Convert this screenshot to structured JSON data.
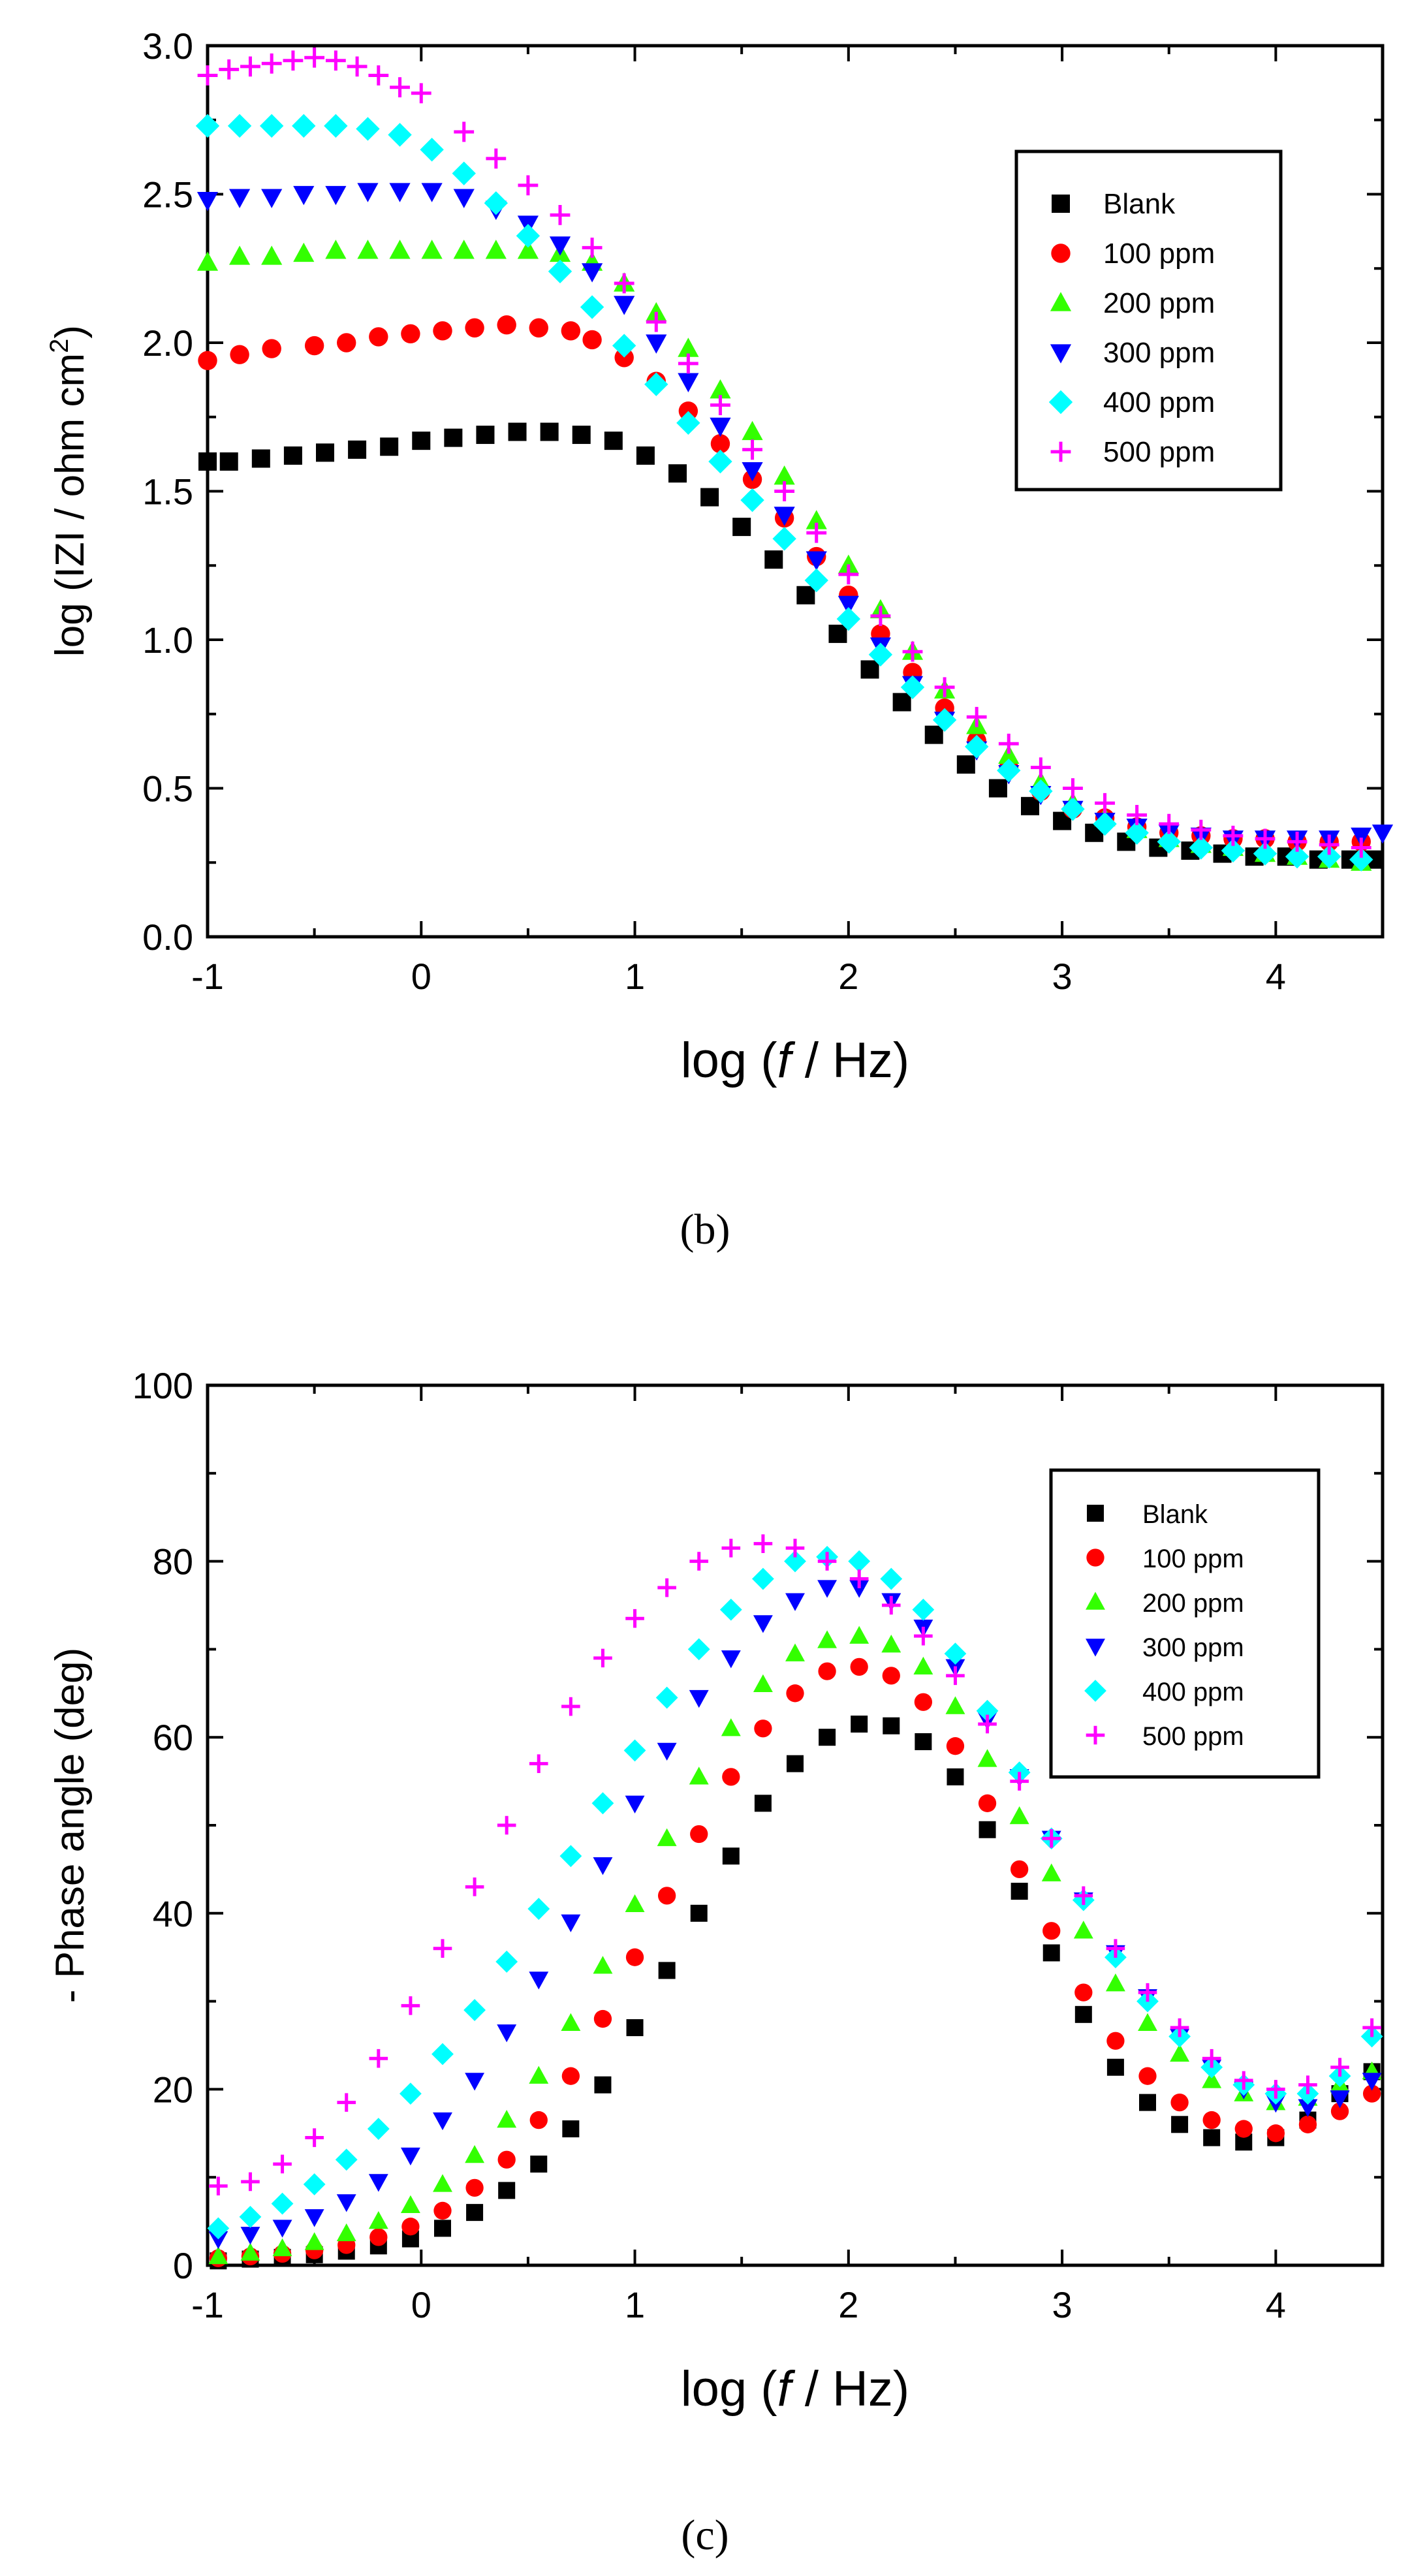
{
  "figure_labels": {
    "b": "(b)",
    "c": "(c)"
  },
  "series_styles": [
    {
      "name": "Blank",
      "color": "#000000",
      "marker": "square"
    },
    {
      "name": "100 ppm",
      "color": "#ff0000",
      "marker": "circle"
    },
    {
      "name": "200 ppm",
      "color": "#33ff00",
      "marker": "triangle-up"
    },
    {
      "name": "300 ppm",
      "color": "#0000ff",
      "marker": "triangle-down"
    },
    {
      "name": "400 ppm",
      "color": "#00ffff",
      "marker": "diamond"
    },
    {
      "name": "500 ppm",
      "color": "#ff00ff",
      "marker": "plus"
    }
  ],
  "chart_data": [
    {
      "id": "b",
      "type": "scatter",
      "title": "",
      "xlabel_parts": {
        "pre": "log (",
        "italic": "f",
        "post": " / Hz)"
      },
      "ylabel_parts": {
        "main": "log (IZI / ohm cm",
        "sup": "2",
        "close": ")"
      },
      "xlim": [
        -1,
        4.5
      ],
      "ylim": [
        0,
        3.0
      ],
      "xticks": [
        "-1",
        "0",
        "1",
        "2",
        "3",
        "4"
      ],
      "xtick_values": [
        -1,
        0,
        1,
        2,
        3,
        4
      ],
      "yticks": [
        "0.0",
        "0.5",
        "1.0",
        "1.5",
        "2.0",
        "2.5",
        "3.0"
      ],
      "ytick_values": [
        0,
        0.5,
        1.0,
        1.5,
        2.0,
        2.5,
        3.0
      ],
      "legend_position": "top-right",
      "series": [
        {
          "name": "Blank",
          "x": [
            -1.0,
            -0.9,
            -0.75,
            -0.6,
            -0.45,
            -0.3,
            -0.15,
            0.0,
            0.15,
            0.3,
            0.45,
            0.6,
            0.75,
            0.9,
            1.05,
            1.2,
            1.35,
            1.5,
            1.65,
            1.8,
            1.95,
            2.1,
            2.25,
            2.4,
            2.55,
            2.7,
            2.85,
            3.0,
            3.15,
            3.3,
            3.45,
            3.6,
            3.75,
            3.9,
            4.05,
            4.2,
            4.35,
            4.45
          ],
          "y": [
            1.6,
            1.6,
            1.61,
            1.62,
            1.63,
            1.64,
            1.65,
            1.67,
            1.68,
            1.69,
            1.7,
            1.7,
            1.69,
            1.67,
            1.62,
            1.56,
            1.48,
            1.38,
            1.27,
            1.15,
            1.02,
            0.9,
            0.79,
            0.68,
            0.58,
            0.5,
            0.44,
            0.39,
            0.35,
            0.32,
            0.3,
            0.29,
            0.28,
            0.27,
            0.27,
            0.26,
            0.26,
            0.26
          ]
        },
        {
          "name": "100 ppm",
          "x": [
            -1.0,
            -0.85,
            -0.7,
            -0.5,
            -0.35,
            -0.2,
            -0.05,
            0.1,
            0.25,
            0.4,
            0.55,
            0.7,
            0.8,
            0.95,
            1.1,
            1.25,
            1.4,
            1.55,
            1.7,
            1.85,
            2.0,
            2.15,
            2.3,
            2.45,
            2.6,
            2.75,
            2.9,
            3.05,
            3.2,
            3.35,
            3.5,
            3.65,
            3.8,
            3.95,
            4.1,
            4.25,
            4.4
          ],
          "y": [
            1.94,
            1.96,
            1.98,
            1.99,
            2.0,
            2.02,
            2.03,
            2.04,
            2.05,
            2.06,
            2.05,
            2.04,
            2.01,
            1.95,
            1.87,
            1.77,
            1.66,
            1.54,
            1.41,
            1.28,
            1.15,
            1.02,
            0.89,
            0.77,
            0.66,
            0.57,
            0.49,
            0.43,
            0.4,
            0.37,
            0.35,
            0.34,
            0.33,
            0.33,
            0.32,
            0.32,
            0.32
          ]
        },
        {
          "name": "200 ppm",
          "x": [
            -1.0,
            -0.85,
            -0.7,
            -0.55,
            -0.4,
            -0.25,
            -0.1,
            0.05,
            0.2,
            0.35,
            0.5,
            0.65,
            0.8,
            0.95,
            1.1,
            1.25,
            1.4,
            1.55,
            1.7,
            1.85,
            2.0,
            2.15,
            2.3,
            2.45,
            2.6,
            2.75,
            2.9,
            3.05,
            3.2,
            3.35,
            3.5,
            3.65,
            3.8,
            3.95,
            4.1,
            4.25,
            4.4
          ],
          "y": [
            2.27,
            2.29,
            2.29,
            2.3,
            2.31,
            2.31,
            2.31,
            2.31,
            2.31,
            2.31,
            2.31,
            2.3,
            2.27,
            2.2,
            2.1,
            1.98,
            1.84,
            1.7,
            1.55,
            1.4,
            1.25,
            1.1,
            0.96,
            0.83,
            0.71,
            0.61,
            0.52,
            0.45,
            0.4,
            0.36,
            0.33,
            0.31,
            0.3,
            0.28,
            0.27,
            0.26,
            0.25
          ]
        },
        {
          "name": "300 ppm",
          "x": [
            -1.0,
            -0.85,
            -0.7,
            -0.55,
            -0.4,
            -0.25,
            -0.1,
            0.05,
            0.2,
            0.35,
            0.5,
            0.65,
            0.8,
            0.95,
            1.1,
            1.25,
            1.4,
            1.55,
            1.7,
            1.85,
            2.0,
            2.15,
            2.3,
            2.45,
            2.6,
            2.75,
            2.9,
            3.05,
            3.2,
            3.35,
            3.5,
            3.65,
            3.8,
            3.95,
            4.1,
            4.25,
            4.4,
            4.5
          ],
          "y": [
            2.48,
            2.49,
            2.49,
            2.5,
            2.5,
            2.51,
            2.51,
            2.51,
            2.49,
            2.45,
            2.4,
            2.33,
            2.24,
            2.13,
            2.0,
            1.87,
            1.72,
            1.57,
            1.42,
            1.27,
            1.12,
            0.98,
            0.85,
            0.73,
            0.63,
            0.55,
            0.48,
            0.43,
            0.39,
            0.37,
            0.35,
            0.34,
            0.33,
            0.33,
            0.33,
            0.33,
            0.34,
            0.35
          ]
        },
        {
          "name": "400 ppm",
          "x": [
            -1.0,
            -0.85,
            -0.7,
            -0.55,
            -0.4,
            -0.25,
            -0.1,
            0.05,
            0.2,
            0.35,
            0.5,
            0.65,
            0.8,
            0.95,
            1.1,
            1.25,
            1.4,
            1.55,
            1.7,
            1.85,
            2.0,
            2.15,
            2.3,
            2.45,
            2.6,
            2.75,
            2.9,
            3.05,
            3.2,
            3.35,
            3.5,
            3.65,
            3.8,
            3.95,
            4.1,
            4.25,
            4.4
          ],
          "y": [
            2.73,
            2.73,
            2.73,
            2.73,
            2.73,
            2.72,
            2.7,
            2.65,
            2.57,
            2.47,
            2.36,
            2.24,
            2.12,
            1.99,
            1.86,
            1.73,
            1.6,
            1.47,
            1.34,
            1.2,
            1.07,
            0.95,
            0.84,
            0.73,
            0.64,
            0.56,
            0.49,
            0.43,
            0.38,
            0.35,
            0.32,
            0.3,
            0.29,
            0.28,
            0.27,
            0.27,
            0.26
          ]
        },
        {
          "name": "500 ppm",
          "x": [
            -1.0,
            -0.9,
            -0.8,
            -0.7,
            -0.6,
            -0.5,
            -0.4,
            -0.3,
            -0.2,
            -0.1,
            0.0,
            0.2,
            0.35,
            0.5,
            0.65,
            0.8,
            0.95,
            1.1,
            1.25,
            1.4,
            1.55,
            1.7,
            1.85,
            2.0,
            2.15,
            2.3,
            2.45,
            2.6,
            2.75,
            2.9,
            3.05,
            3.2,
            3.35,
            3.5,
            3.65,
            3.8,
            3.95,
            4.1,
            4.25,
            4.4
          ],
          "y": [
            2.9,
            2.92,
            2.93,
            2.94,
            2.95,
            2.96,
            2.95,
            2.93,
            2.9,
            2.86,
            2.84,
            2.71,
            2.62,
            2.53,
            2.43,
            2.32,
            2.2,
            2.07,
            1.93,
            1.79,
            1.64,
            1.5,
            1.36,
            1.22,
            1.08,
            0.96,
            0.84,
            0.74,
            0.65,
            0.57,
            0.5,
            0.45,
            0.41,
            0.38,
            0.36,
            0.34,
            0.33,
            0.32,
            0.31,
            0.3
          ]
        }
      ]
    },
    {
      "id": "c",
      "type": "scatter",
      "title": "",
      "xlabel_parts": {
        "pre": "log (",
        "italic": "f",
        "post": " / Hz)"
      },
      "ylabel": "- Phase angle (deg)",
      "xlim": [
        -1,
        4.5
      ],
      "ylim": [
        0,
        100
      ],
      "xticks": [
        "-1",
        "0",
        "1",
        "2",
        "3",
        "4"
      ],
      "xtick_values": [
        -1,
        0,
        1,
        2,
        3,
        4
      ],
      "yticks": [
        "0",
        "20",
        "40",
        "60",
        "80",
        "100"
      ],
      "ytick_values": [
        0,
        20,
        40,
        60,
        80,
        100
      ],
      "legend_position": "top-right",
      "series": [
        {
          "name": "Blank",
          "x": [
            -0.95,
            -0.8,
            -0.65,
            -0.5,
            -0.35,
            -0.2,
            -0.05,
            0.1,
            0.25,
            0.4,
            0.55,
            0.7,
            0.85,
            1.0,
            1.15,
            1.3,
            1.45,
            1.6,
            1.75,
            1.9,
            2.05,
            2.2,
            2.35,
            2.5,
            2.65,
            2.8,
            2.95,
            3.1,
            3.25,
            3.4,
            3.55,
            3.7,
            3.85,
            4.0,
            4.15,
            4.3,
            4.45
          ],
          "y": [
            0.5,
            0.7,
            0.9,
            1.2,
            1.6,
            2.2,
            3.0,
            4.2,
            6.0,
            8.5,
            11.5,
            15.5,
            20.5,
            27.0,
            33.5,
            40.0,
            46.5,
            52.5,
            57.0,
            60.0,
            61.5,
            61.3,
            59.5,
            55.5,
            49.5,
            42.5,
            35.5,
            28.5,
            22.5,
            18.5,
            16.0,
            14.5,
            14.0,
            14.5,
            16.5,
            19.5,
            22.0
          ]
        },
        {
          "name": "100 ppm",
          "x": [
            -0.95,
            -0.8,
            -0.65,
            -0.5,
            -0.35,
            -0.2,
            -0.05,
            0.1,
            0.25,
            0.4,
            0.55,
            0.7,
            0.85,
            1.0,
            1.15,
            1.3,
            1.45,
            1.6,
            1.75,
            1.9,
            2.05,
            2.2,
            2.35,
            2.5,
            2.65,
            2.8,
            2.95,
            3.1,
            3.25,
            3.4,
            3.55,
            3.7,
            3.85,
            4.0,
            4.15,
            4.3,
            4.45
          ],
          "y": [
            0.8,
            1.0,
            1.3,
            1.7,
            2.3,
            3.2,
            4.4,
            6.2,
            8.8,
            12.0,
            16.5,
            21.5,
            28.0,
            35.0,
            42.0,
            49.0,
            55.5,
            61.0,
            65.0,
            67.5,
            68.0,
            67.0,
            64.0,
            59.0,
            52.5,
            45.0,
            38.0,
            31.0,
            25.5,
            21.5,
            18.5,
            16.5,
            15.5,
            15.0,
            16.0,
            17.5,
            19.5
          ]
        },
        {
          "name": "200 ppm",
          "x": [
            -0.95,
            -0.8,
            -0.65,
            -0.5,
            -0.35,
            -0.2,
            -0.05,
            0.1,
            0.25,
            0.4,
            0.55,
            0.7,
            0.85,
            1.0,
            1.15,
            1.3,
            1.45,
            1.6,
            1.75,
            1.9,
            2.05,
            2.2,
            2.35,
            2.5,
            2.65,
            2.8,
            2.95,
            3.1,
            3.25,
            3.4,
            3.55,
            3.7,
            3.85,
            4.0,
            4.15,
            4.3,
            4.45
          ],
          "y": [
            1.0,
            1.4,
            1.9,
            2.6,
            3.6,
            5.0,
            6.8,
            9.2,
            12.5,
            16.5,
            21.5,
            27.5,
            34.0,
            41.0,
            48.5,
            55.5,
            61.0,
            66.0,
            69.5,
            71.0,
            71.5,
            70.5,
            68.0,
            63.5,
            57.5,
            51.0,
            44.5,
            38.0,
            32.0,
            27.5,
            24.0,
            21.0,
            19.5,
            18.5,
            19.0,
            20.5,
            22.0
          ]
        },
        {
          "name": "300 ppm",
          "x": [
            -0.95,
            -0.8,
            -0.65,
            -0.5,
            -0.35,
            -0.2,
            -0.05,
            0.1,
            0.25,
            0.4,
            0.55,
            0.7,
            0.85,
            1.0,
            1.15,
            1.3,
            1.45,
            1.6,
            1.75,
            1.9,
            2.05,
            2.2,
            2.35,
            2.5,
            2.65,
            2.8,
            2.95,
            3.1,
            3.25,
            3.4,
            3.55,
            3.7,
            3.85,
            4.0,
            4.15,
            4.3,
            4.45
          ],
          "y": [
            3.0,
            3.5,
            4.3,
            5.5,
            7.2,
            9.5,
            12.5,
            16.5,
            21.0,
            26.5,
            32.5,
            39.0,
            45.5,
            52.5,
            58.5,
            64.5,
            69.0,
            73.0,
            75.5,
            77.0,
            77.0,
            75.5,
            72.5,
            68.0,
            62.0,
            55.5,
            48.5,
            41.5,
            35.5,
            30.5,
            26.0,
            22.5,
            20.0,
            18.5,
            18.0,
            19.0,
            21.0
          ]
        },
        {
          "name": "400 ppm",
          "x": [
            -0.95,
            -0.8,
            -0.65,
            -0.5,
            -0.35,
            -0.2,
            -0.05,
            0.1,
            0.25,
            0.4,
            0.55,
            0.7,
            0.85,
            1.0,
            1.15,
            1.3,
            1.45,
            1.6,
            1.75,
            1.9,
            2.05,
            2.2,
            2.35,
            2.5,
            2.65,
            2.8,
            2.95,
            3.1,
            3.25,
            3.4,
            3.55,
            3.7,
            3.85,
            4.0,
            4.15,
            4.3,
            4.45
          ],
          "y": [
            4.2,
            5.5,
            7.0,
            9.2,
            12.0,
            15.5,
            19.5,
            24.0,
            29.0,
            34.5,
            40.5,
            46.5,
            52.5,
            58.5,
            64.5,
            70.0,
            74.5,
            78.0,
            80.0,
            80.5,
            80.0,
            78.0,
            74.5,
            69.5,
            63.0,
            56.0,
            48.5,
            41.5,
            35.0,
            30.0,
            26.0,
            22.5,
            20.5,
            19.5,
            19.5,
            21.5,
            26.0
          ]
        },
        {
          "name": "500 ppm",
          "x": [
            -0.95,
            -0.8,
            -0.65,
            -0.5,
            -0.35,
            -0.2,
            -0.05,
            0.1,
            0.25,
            0.4,
            0.55,
            0.7,
            0.85,
            1.0,
            1.15,
            1.3,
            1.45,
            1.6,
            1.75,
            1.9,
            2.05,
            2.2,
            2.35,
            2.5,
            2.65,
            2.8,
            2.95,
            3.1,
            3.25,
            3.4,
            3.55,
            3.7,
            3.85,
            4.0,
            4.15,
            4.3,
            4.45
          ],
          "y": [
            9.0,
            9.5,
            11.5,
            14.5,
            18.5,
            23.5,
            29.5,
            36.0,
            43.0,
            50.0,
            57.0,
            63.5,
            69.0,
            73.5,
            77.0,
            80.0,
            81.5,
            82.0,
            81.5,
            80.0,
            78.0,
            75.0,
            71.5,
            67.0,
            61.5,
            55.0,
            48.5,
            42.0,
            36.0,
            31.0,
            27.0,
            23.5,
            21.0,
            20.0,
            20.5,
            22.5,
            27.0
          ]
        }
      ]
    }
  ]
}
